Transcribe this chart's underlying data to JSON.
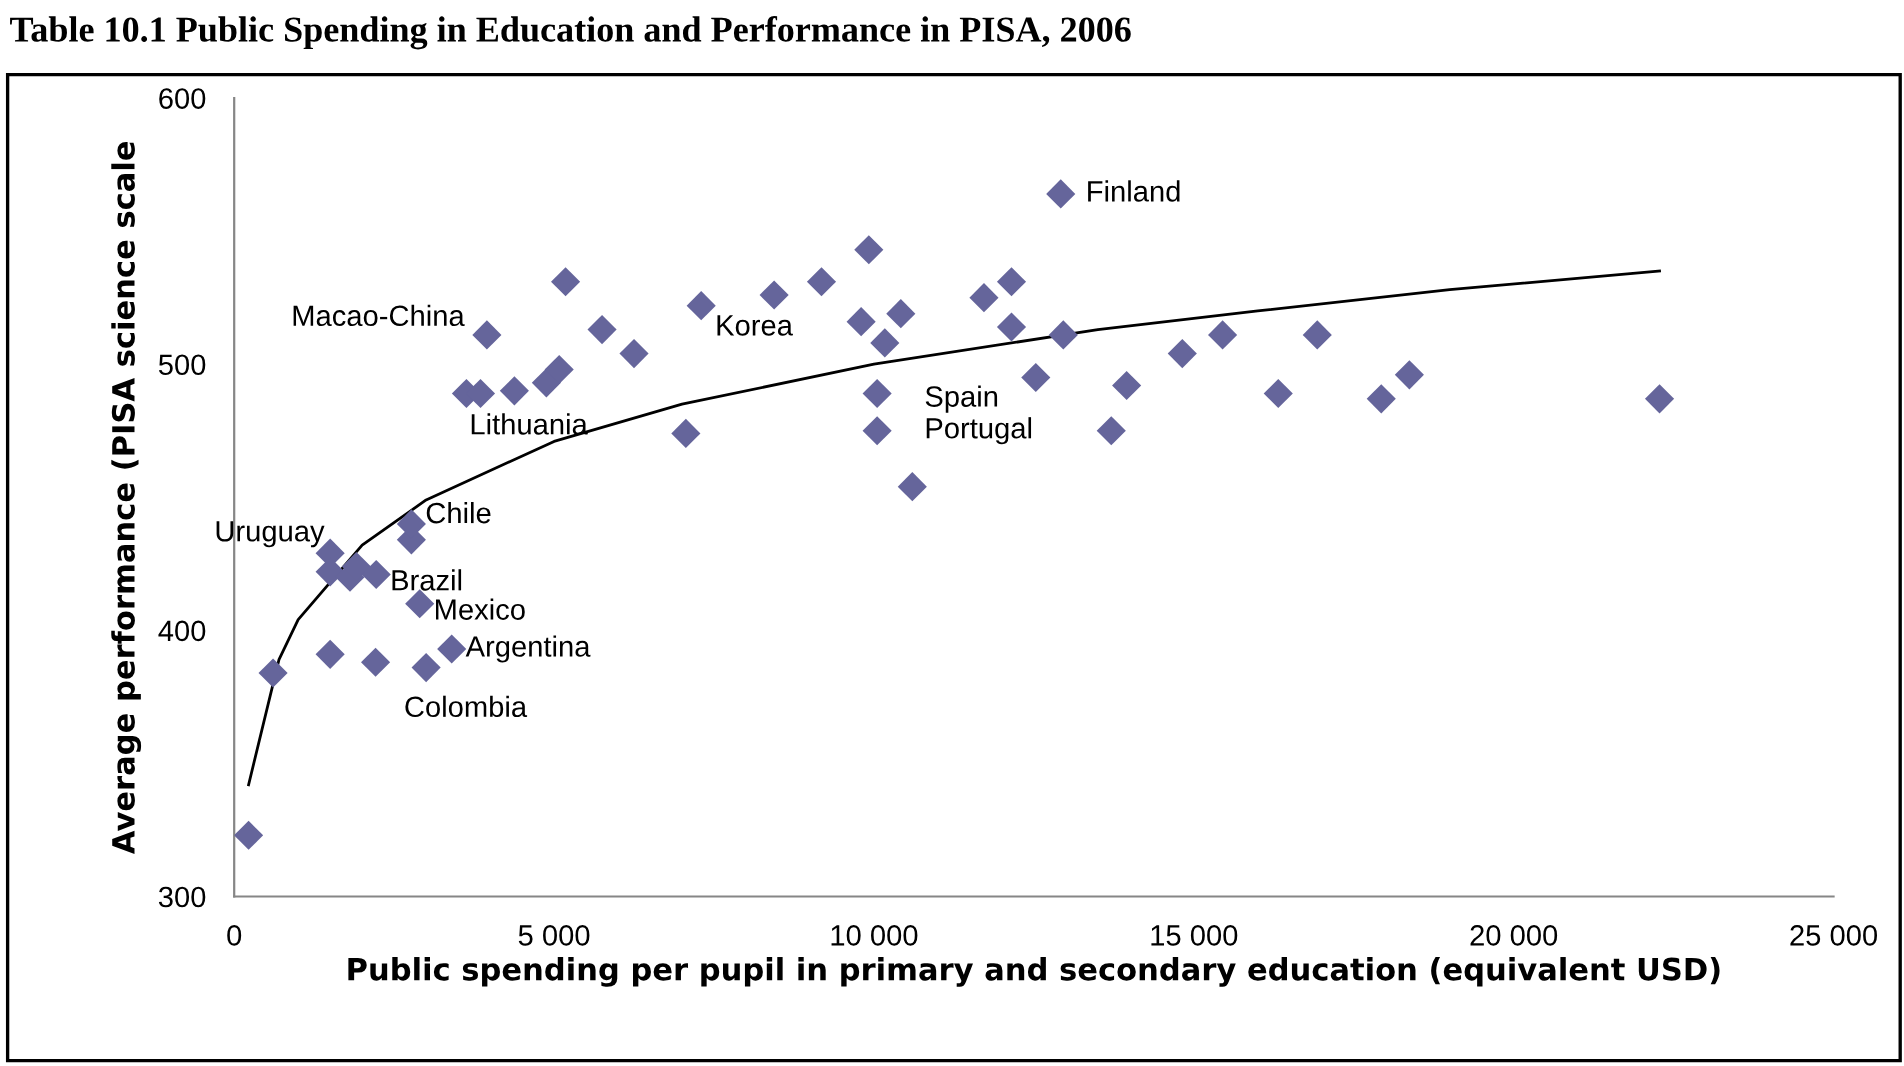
{
  "chart_data": {
    "type": "scatter",
    "title": "Table 10.1 Public Spending in Education and Performance in PISA, 2006",
    "xlabel": "Public spending per pupil in primary and secondary education (equivalent USD)",
    "ylabel": "Average performance (PISA science scale",
    "xlim": [
      0,
      25000
    ],
    "ylim": [
      300,
      600
    ],
    "xticks": [
      0,
      {
        "value": 5000,
        "label": "5 000"
      },
      {
        "value": 10000,
        "label": "10 000"
      },
      {
        "value": 15000,
        "label": "15 000"
      },
      {
        "value": 20000,
        "label": "20 000"
      },
      {
        "value": 25000,
        "label": "25 000"
      }
    ],
    "yticks": [
      300,
      400,
      500,
      600
    ],
    "grid": false,
    "legend": false,
    "series": [
      {
        "marker": "diamond",
        "color": "#65659b",
        "x": [
          225,
          608,
          1500,
          2210,
          3000,
          3400,
          2900,
          2770,
          2770,
          1500,
          1500,
          1810,
          1910,
          2220,
          3630,
          3850,
          3950,
          4380,
          4880,
          5080,
          5180,
          5750,
          6250,
          7060,
          7300,
          8440,
          9180,
          9920,
          9800,
          10420,
          10170,
          10050,
          10050,
          10600,
          11720,
          12150,
          12150,
          12920,
          12960,
          12530,
          13950,
          13710,
          14820,
          15450,
          16320,
          16930,
          17930,
          18370,
          22280
        ],
        "values": [
          323,
          384,
          391,
          388,
          386,
          393,
          410,
          434,
          440,
          429,
          422,
          420,
          424,
          421,
          489,
          489,
          511,
          490,
          493,
          498,
          531,
          513,
          504,
          474,
          522,
          526,
          531,
          543,
          516,
          519,
          508,
          489,
          475,
          454,
          525,
          531,
          514,
          564,
          511,
          495,
          492,
          475,
          504,
          511,
          489,
          511,
          487,
          496,
          487
        ]
      },
      {
        "type": "line",
        "color": "#000000",
        "line_style": "solid",
        "marker": "none",
        "x": [
          225,
          700,
          1000,
          2000,
          3000,
          5000,
          7000,
          10000,
          13500,
          16000,
          19000,
          22280
        ],
        "values": [
          342,
          389,
          404,
          432,
          449,
          471,
          485,
          500,
          513,
          520,
          528,
          535
        ]
      }
    ],
    "annotations": [
      {
        "text": "Finland",
        "x": 12920,
        "y": 564
      },
      {
        "text": "Korea",
        "x": 7300,
        "y": 522
      },
      {
        "text": "Macao-China",
        "x": 3950,
        "y": 511
      },
      {
        "text": "Lithuania",
        "x": 3850,
        "y": 489
      },
      {
        "text": "Uruguay",
        "x": 1500,
        "y": 429
      },
      {
        "text": "Chile",
        "x": 2770,
        "y": 440
      },
      {
        "text": "Brazil",
        "x": 2220,
        "y": 421
      },
      {
        "text": "Mexico",
        "x": 2900,
        "y": 410
      },
      {
        "text": "Argentina",
        "x": 3400,
        "y": 393
      },
      {
        "text": "Colombia",
        "x": 3000,
        "y": 386
      },
      {
        "text": "Spain",
        "x": 10050,
        "y": 489
      },
      {
        "text": "Portugal",
        "x": 10050,
        "y": 475
      }
    ]
  }
}
